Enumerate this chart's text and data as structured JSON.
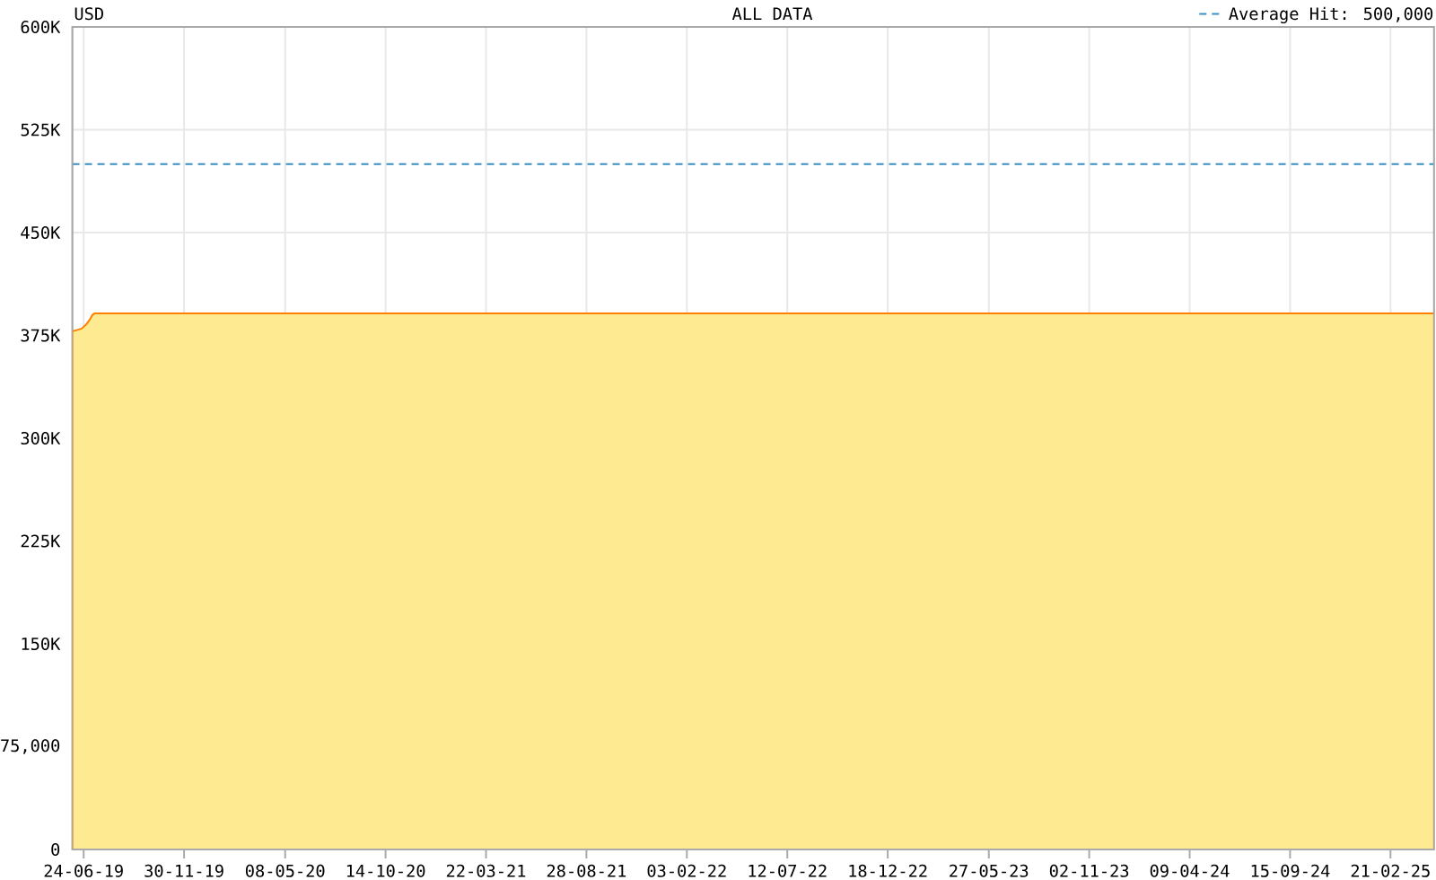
{
  "chart_data": {
    "type": "area",
    "title": "USD",
    "subtitle": "ALL DATA",
    "x": [
      "2019-06-06",
      "2019-06-14",
      "2019-06-21",
      "2019-06-28",
      "2019-07-03",
      "2019-07-08",
      "2019-07-11",
      "2025-05-01"
    ],
    "values": [
      378000,
      379000,
      380000,
      383000,
      386000,
      390000,
      391000,
      391000
    ],
    "color": "#feea91",
    "xlim": [
      "2019-06-06",
      "2025-05-01"
    ],
    "xticks": [
      {
        "value": "2019-06-24",
        "label": "24-06-19"
      },
      {
        "value": "2019-11-30",
        "label": "30-11-19"
      },
      {
        "value": "2020-05-08",
        "label": "08-05-20"
      },
      {
        "value": "2020-10-14",
        "label": "14-10-20"
      },
      {
        "value": "2021-03-22",
        "label": "22-03-21"
      },
      {
        "value": "2021-08-28",
        "label": "28-08-21"
      },
      {
        "value": "2022-02-03",
        "label": "03-02-22"
      },
      {
        "value": "2022-07-12",
        "label": "12-07-22"
      },
      {
        "value": "2022-12-18",
        "label": "18-12-22"
      },
      {
        "value": "2023-05-27",
        "label": "27-05-23"
      },
      {
        "value": "2023-11-02",
        "label": "02-11-23"
      },
      {
        "value": "2024-04-09",
        "label": "09-04-24"
      },
      {
        "value": "2024-09-15",
        "label": "15-09-24"
      },
      {
        "value": "2025-02-21",
        "label": "21-02-25"
      }
    ],
    "ylim": [
      0,
      600000
    ],
    "yticks": [
      0,
      {
        "value": 75000,
        "label": "75,000"
      },
      {
        "value": 150000,
        "label": "150K"
      },
      {
        "value": 225000,
        "label": "225K"
      },
      {
        "value": 300000,
        "label": "300K"
      },
      {
        "value": 375000,
        "label": "375K"
      },
      {
        "value": 450000,
        "label": "450K"
      },
      {
        "value": 525000,
        "label": "525K"
      },
      {
        "value": 600000,
        "label": "600K"
      }
    ],
    "ref_lines": [
      {
        "axis": "y",
        "value": 500000,
        "label": "Average Hit: 500,000",
        "color": "#3a8fc0",
        "line_style": "dashed"
      }
    ],
    "grid": true,
    "legend": "top right"
  }
}
